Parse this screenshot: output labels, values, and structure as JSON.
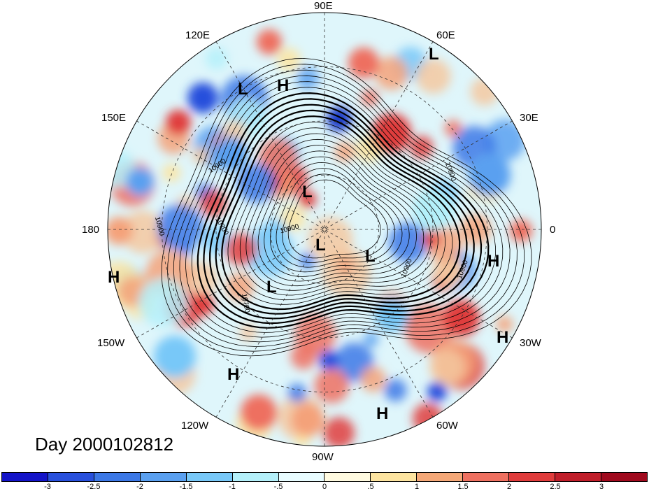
{
  "map": {
    "longitude_labels": [
      {
        "id": "90E",
        "text": "90E"
      },
      {
        "id": "60E",
        "text": "60E"
      },
      {
        "id": "120E",
        "text": "120E"
      },
      {
        "id": "30E",
        "text": "30E"
      },
      {
        "id": "150E",
        "text": "150E"
      },
      {
        "id": "0",
        "text": "0"
      },
      {
        "id": "180",
        "text": "180"
      },
      {
        "id": "30W",
        "text": "30W"
      },
      {
        "id": "150W",
        "text": "150W"
      },
      {
        "id": "60W",
        "text": "60W"
      },
      {
        "id": "120W",
        "text": "120W"
      },
      {
        "id": "90W",
        "text": "90W"
      }
    ],
    "pressure_centers": [
      {
        "type": "L",
        "text": "L"
      },
      {
        "type": "H",
        "text": "H"
      },
      {
        "type": "L",
        "text": "L"
      },
      {
        "type": "L",
        "text": "L"
      },
      {
        "type": "L",
        "text": "L"
      },
      {
        "type": "L",
        "text": "L"
      },
      {
        "type": "L",
        "text": "L"
      },
      {
        "type": "H",
        "text": "H"
      },
      {
        "type": "H",
        "text": "H"
      },
      {
        "type": "H",
        "text": "H"
      },
      {
        "type": "H",
        "text": "H"
      },
      {
        "type": "H",
        "text": "H"
      }
    ],
    "contour_labels": [
      "10900",
      "10800",
      "10900",
      "10900",
      "10700",
      "10900",
      "10900",
      "10700"
    ]
  },
  "date_label": "Day 2000102812",
  "colorbar": {
    "ticks": [
      "-3",
      "-2.5",
      "-2",
      "-1.5",
      "-1",
      "-.5",
      "0",
      ".5",
      "1",
      "1.5",
      "2",
      "2.5",
      "3"
    ],
    "colors": [
      "#1414c8",
      "#2850dc",
      "#3c78e6",
      "#5aa0f0",
      "#78c8f8",
      "#b4f0fa",
      "#e8fcff",
      "#fffae0",
      "#fde4a0",
      "#f5a878",
      "#ee7060",
      "#e03c3c",
      "#c01e2a",
      "#a00a1e"
    ]
  }
}
